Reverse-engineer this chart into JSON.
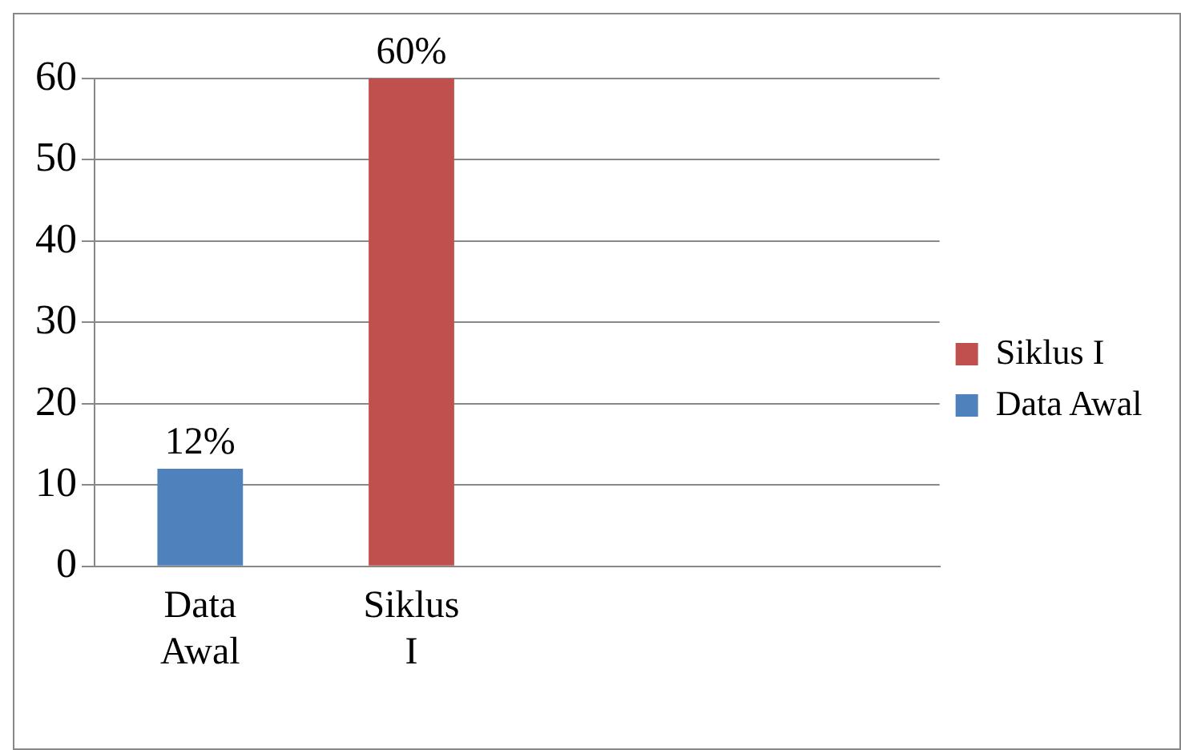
{
  "chart_data": {
    "type": "bar",
    "categories": [
      "Data Awal",
      "Siklus I",
      null,
      null
    ],
    "series": [
      {
        "name": "Siklus I",
        "color": "#c0504d",
        "values": [
          null,
          60,
          null,
          null
        ],
        "value_labels": [
          null,
          "60%",
          null,
          null
        ]
      },
      {
        "name": "Data Awal",
        "color": "#4f81bd",
        "values": [
          12,
          null,
          null,
          null
        ],
        "value_labels": [
          "12%",
          null,
          null,
          null
        ]
      }
    ],
    "ylim": [
      0,
      60
    ],
    "yticks": [
      0,
      10,
      20,
      30,
      40,
      50,
      60
    ],
    "grid": "y",
    "legend": "right"
  }
}
